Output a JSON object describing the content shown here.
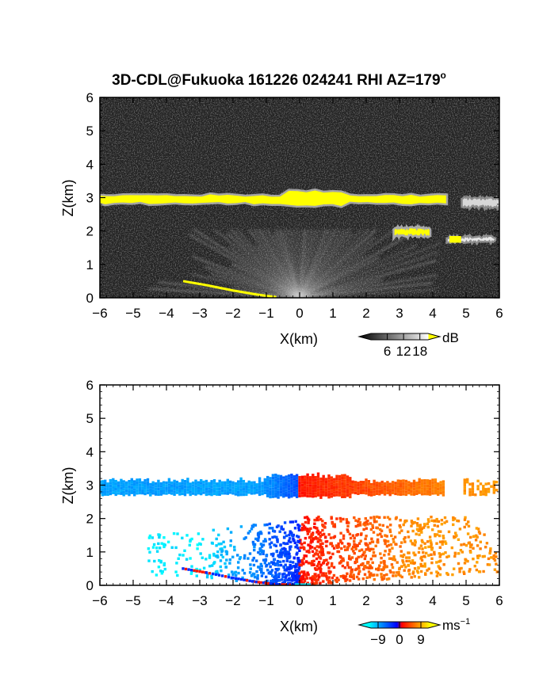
{
  "chart_data": [
    {
      "type": "heatmap",
      "title": "3D-CDL@Fukuoka 161226 024241 RHI AZ=179",
      "title_superscript": "o",
      "xlabel": "X(km)",
      "ylabel": "Z(km)",
      "xlim": [
        -6,
        6
      ],
      "ylim": [
        0,
        6
      ],
      "x_ticks": [
        "-6",
        "-5",
        "-4",
        "-3",
        "-2",
        "-1",
        "0",
        "1",
        "2",
        "3",
        "4",
        "5",
        "6"
      ],
      "y_ticks": [
        "0",
        "1",
        "2",
        "3",
        "4",
        "5",
        "6"
      ],
      "colorbar": {
        "unit": "dB",
        "ticks": [
          "6",
          "12",
          "18"
        ],
        "values": [
          6,
          12,
          18
        ],
        "range": [
          0,
          21
        ],
        "colormap": "grayscale to white, yellow above 18",
        "colors": [
          "#000000",
          "#ffffff",
          "#ffff00"
        ]
      },
      "features": [
        {
          "kind": "cloud layer",
          "x": [
            -6,
            4.4
          ],
          "z_center": 2.95,
          "value": "above 18 dB"
        },
        {
          "kind": "cloud patch",
          "x": [
            5,
            6
          ],
          "z_center": 2.85,
          "value": "about 15 dB"
        },
        {
          "kind": "cloud patch",
          "x": [
            2.9,
            3.9
          ],
          "z_center": 1.97,
          "value": "above 18 dB"
        },
        {
          "kind": "cloud patch",
          "x": [
            4.5,
            5.8
          ],
          "z_center": 1.75,
          "value": "above 18 dB"
        },
        {
          "kind": "surface return",
          "x": [
            -3.5,
            -0.7
          ],
          "z": [
            0.5,
            0.02
          ],
          "value": "above 18 dB"
        },
        {
          "kind": "radial fan",
          "origin": [
            0,
            0
          ],
          "extent_km": 6,
          "value": "6 to 12 dB"
        }
      ]
    },
    {
      "type": "heatmap",
      "xlabel": "X(km)",
      "ylabel": "Z(km)",
      "xlim": [
        -6,
        6
      ],
      "ylim": [
        0,
        6
      ],
      "x_ticks": [
        "-6",
        "-5",
        "-4",
        "-3",
        "-2",
        "-1",
        "0",
        "1",
        "2",
        "3",
        "4",
        "5",
        "6"
      ],
      "y_ticks": [
        "0",
        "1",
        "2",
        "3",
        "4",
        "5",
        "6"
      ],
      "colorbar": {
        "unit": "ms",
        "unit_superscript": "−1",
        "ticks": [
          "−9",
          "0",
          "9"
        ],
        "values": [
          -9,
          0,
          9
        ],
        "range": [
          -12,
          12
        ],
        "colormap": "cyan-blue (negative) to red-yellow (positive)",
        "colors": [
          "#00ffff",
          "#0000ff",
          "#ff0000",
          "#ffff00"
        ]
      },
      "features": [
        {
          "kind": "cloud layer",
          "x": [
            -6,
            0
          ],
          "z_center": 2.95,
          "value_ms": -5
        },
        {
          "kind": "cloud layer",
          "x": [
            0,
            6
          ],
          "z_center": 2.95,
          "value_ms": 5
        },
        {
          "kind": "lower fan",
          "x": [
            -4.5,
            0
          ],
          "z": [
            0,
            2
          ],
          "value_ms": -6
        },
        {
          "kind": "lower fan",
          "x": [
            0,
            6
          ],
          "z": [
            0,
            2
          ],
          "value_ms": 5
        },
        {
          "kind": "surface streak",
          "x": [
            -3.5,
            -0.5
          ],
          "z": [
            0.5,
            0.03
          ],
          "value_ms": "mixed"
        }
      ]
    }
  ]
}
